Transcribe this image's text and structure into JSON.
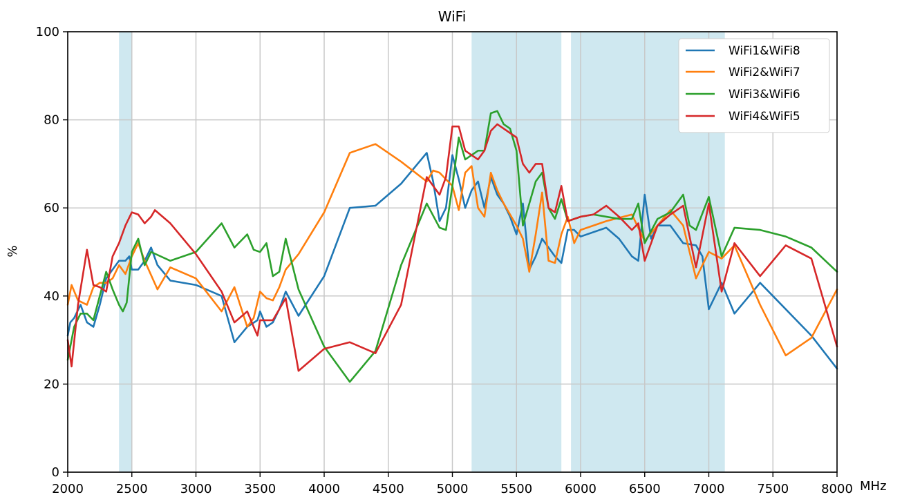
{
  "chart_data": {
    "type": "line",
    "title": "WiFi",
    "xlabel": "MHz",
    "ylabel": "%",
    "xlim": [
      2000,
      8000
    ],
    "ylim": [
      0,
      100
    ],
    "grid": true,
    "legend_position": "top-right",
    "x_ticks": [
      2000,
      2500,
      3000,
      3500,
      4000,
      4500,
      5000,
      5500,
      6000,
      6500,
      7000,
      7500,
      8000
    ],
    "x_tick_labels": [
      "2000",
      "2500",
      "3000",
      "3500",
      "4000",
      "4500",
      "5000",
      "5500",
      "6000",
      "6500",
      "7000",
      "7500",
      "8000"
    ],
    "y_ticks": [
      0,
      20,
      40,
      60,
      80,
      100
    ],
    "y_tick_labels": [
      "0",
      "20",
      "40",
      "60",
      "80",
      "100"
    ],
    "shaded_bands": [
      {
        "x0": 2400,
        "x1": 2500,
        "color": "#add8e6"
      },
      {
        "x0": 5150,
        "x1": 5850,
        "color": "#add8e6"
      },
      {
        "x0": 5925,
        "x1": 7125,
        "color": "#add8e6"
      }
    ],
    "series": [
      {
        "name": "WiFi1&WiFi8",
        "color": "#1f77b4",
        "points": [
          [
            2000,
            31
          ],
          [
            2020,
            34
          ],
          [
            2050,
            35
          ],
          [
            2100,
            38
          ],
          [
            2150,
            34
          ],
          [
            2200,
            33
          ],
          [
            2250,
            38
          ],
          [
            2300,
            44
          ],
          [
            2350,
            46
          ],
          [
            2400,
            48
          ],
          [
            2450,
            48
          ],
          [
            2480,
            49
          ],
          [
            2500,
            46
          ],
          [
            2550,
            46
          ],
          [
            2600,
            48
          ],
          [
            2650,
            51
          ],
          [
            2700,
            47
          ],
          [
            2800,
            43.5
          ],
          [
            3000,
            42.5
          ],
          [
            3200,
            40
          ],
          [
            3300,
            29.5
          ],
          [
            3400,
            33
          ],
          [
            3480,
            34.5
          ],
          [
            3500,
            36.5
          ],
          [
            3550,
            33
          ],
          [
            3600,
            34
          ],
          [
            3650,
            37
          ],
          [
            3700,
            41
          ],
          [
            3800,
            35.5
          ],
          [
            4000,
            44.5
          ],
          [
            4200,
            60
          ],
          [
            4400,
            60.5
          ],
          [
            4600,
            65.5
          ],
          [
            4800,
            72.5
          ],
          [
            4850,
            66
          ],
          [
            4900,
            57
          ],
          [
            4950,
            60
          ],
          [
            5000,
            72
          ],
          [
            5050,
            66.5
          ],
          [
            5100,
            60
          ],
          [
            5150,
            64
          ],
          [
            5200,
            66
          ],
          [
            5250,
            60
          ],
          [
            5300,
            67
          ],
          [
            5350,
            63
          ],
          [
            5400,
            61
          ],
          [
            5450,
            58
          ],
          [
            5500,
            54
          ],
          [
            5550,
            61
          ],
          [
            5600,
            46
          ],
          [
            5650,
            49
          ],
          [
            5700,
            53
          ],
          [
            5750,
            51
          ],
          [
            5800,
            49
          ],
          [
            5850,
            47.5
          ],
          [
            5900,
            55
          ],
          [
            5950,
            55
          ],
          [
            6000,
            53.5
          ],
          [
            6200,
            55.5
          ],
          [
            6300,
            53
          ],
          [
            6400,
            49
          ],
          [
            6450,
            48
          ],
          [
            6500,
            63
          ],
          [
            6550,
            53
          ],
          [
            6600,
            56
          ],
          [
            6700,
            56
          ],
          [
            6800,
            52
          ],
          [
            6900,
            51.5
          ],
          [
            6950,
            49
          ],
          [
            7000,
            37
          ],
          [
            7100,
            43
          ],
          [
            7200,
            36
          ],
          [
            7400,
            43
          ],
          [
            7600,
            37
          ],
          [
            7800,
            31
          ],
          [
            8000,
            23.5
          ]
        ]
      },
      {
        "name": "WiFi2&WiFi7",
        "color": "#ff7f0e",
        "points": [
          [
            2000,
            38
          ],
          [
            2030,
            42.5
          ],
          [
            2080,
            39
          ],
          [
            2150,
            38
          ],
          [
            2200,
            42
          ],
          [
            2250,
            43
          ],
          [
            2300,
            43
          ],
          [
            2350,
            44
          ],
          [
            2400,
            47
          ],
          [
            2450,
            45
          ],
          [
            2500,
            49
          ],
          [
            2550,
            52
          ],
          [
            2600,
            48
          ],
          [
            2700,
            41.5
          ],
          [
            2800,
            46.5
          ],
          [
            3000,
            44
          ],
          [
            3200,
            36.5
          ],
          [
            3300,
            42
          ],
          [
            3400,
            33
          ],
          [
            3450,
            35
          ],
          [
            3500,
            41
          ],
          [
            3550,
            39.5
          ],
          [
            3600,
            39
          ],
          [
            3650,
            42
          ],
          [
            3700,
            46
          ],
          [
            3800,
            49.5
          ],
          [
            4000,
            59
          ],
          [
            4200,
            72.5
          ],
          [
            4400,
            74.5
          ],
          [
            4600,
            70.5
          ],
          [
            4800,
            66
          ],
          [
            4850,
            68.5
          ],
          [
            4900,
            68
          ],
          [
            5000,
            65
          ],
          [
            5050,
            59.5
          ],
          [
            5100,
            68
          ],
          [
            5150,
            69.5
          ],
          [
            5200,
            60
          ],
          [
            5250,
            58
          ],
          [
            5300,
            68
          ],
          [
            5350,
            64
          ],
          [
            5400,
            61
          ],
          [
            5450,
            58.5
          ],
          [
            5500,
            56
          ],
          [
            5550,
            53
          ],
          [
            5600,
            45.5
          ],
          [
            5650,
            54
          ],
          [
            5700,
            63.5
          ],
          [
            5750,
            48
          ],
          [
            5800,
            47.5
          ],
          [
            5850,
            54
          ],
          [
            5900,
            58
          ],
          [
            5950,
            52
          ],
          [
            6000,
            55
          ],
          [
            6200,
            57
          ],
          [
            6400,
            58.5
          ],
          [
            6450,
            55.5
          ],
          [
            6500,
            52.5
          ],
          [
            6700,
            59.5
          ],
          [
            6800,
            56
          ],
          [
            6900,
            44
          ],
          [
            7000,
            50
          ],
          [
            7100,
            48.5
          ],
          [
            7200,
            51.5
          ],
          [
            7400,
            38
          ],
          [
            7600,
            26.5
          ],
          [
            7800,
            30.5
          ],
          [
            8000,
            41.5
          ]
        ]
      },
      {
        "name": "WiFi3&WiFi6",
        "color": "#2ca02c",
        "points": [
          [
            2000,
            25.5
          ],
          [
            2050,
            33
          ],
          [
            2100,
            36
          ],
          [
            2150,
            36
          ],
          [
            2200,
            34.5
          ],
          [
            2300,
            45.5
          ],
          [
            2350,
            41.5
          ],
          [
            2400,
            38
          ],
          [
            2430,
            36.5
          ],
          [
            2460,
            38.5
          ],
          [
            2500,
            50
          ],
          [
            2550,
            53
          ],
          [
            2600,
            47
          ],
          [
            2650,
            50
          ],
          [
            2800,
            48
          ],
          [
            3000,
            50
          ],
          [
            3200,
            56.5
          ],
          [
            3300,
            51
          ],
          [
            3400,
            54
          ],
          [
            3450,
            50.5
          ],
          [
            3500,
            50
          ],
          [
            3550,
            52
          ],
          [
            3600,
            44.5
          ],
          [
            3650,
            45.5
          ],
          [
            3700,
            53
          ],
          [
            3800,
            41.5
          ],
          [
            4000,
            28.5
          ],
          [
            4200,
            20.5
          ],
          [
            4400,
            27.5
          ],
          [
            4600,
            47
          ],
          [
            4800,
            61
          ],
          [
            4900,
            55.5
          ],
          [
            4950,
            55
          ],
          [
            5000,
            65
          ],
          [
            5050,
            76
          ],
          [
            5100,
            71
          ],
          [
            5150,
            72
          ],
          [
            5200,
            73
          ],
          [
            5250,
            73
          ],
          [
            5300,
            81.5
          ],
          [
            5350,
            82
          ],
          [
            5400,
            79
          ],
          [
            5450,
            78
          ],
          [
            5500,
            73
          ],
          [
            5550,
            56
          ],
          [
            5600,
            61
          ],
          [
            5650,
            66
          ],
          [
            5700,
            68
          ],
          [
            5750,
            60
          ],
          [
            5800,
            57.5
          ],
          [
            5850,
            62
          ],
          [
            5900,
            57
          ],
          [
            6000,
            58
          ],
          [
            6100,
            58.5
          ],
          [
            6200,
            58
          ],
          [
            6300,
            57.5
          ],
          [
            6400,
            57.5
          ],
          [
            6450,
            61
          ],
          [
            6500,
            52
          ],
          [
            6600,
            57.5
          ],
          [
            6700,
            59
          ],
          [
            6800,
            63
          ],
          [
            6850,
            56
          ],
          [
            6900,
            55
          ],
          [
            7000,
            62.5
          ],
          [
            7100,
            49
          ],
          [
            7200,
            55.5
          ],
          [
            7400,
            55
          ],
          [
            7600,
            53.5
          ],
          [
            7800,
            51
          ],
          [
            8000,
            45.5
          ]
        ]
      },
      {
        "name": "WiFi4&WiFi5",
        "color": "#d62728",
        "points": [
          [
            2000,
            30
          ],
          [
            2030,
            24
          ],
          [
            2080,
            38
          ],
          [
            2150,
            50.5
          ],
          [
            2200,
            42.5
          ],
          [
            2250,
            42
          ],
          [
            2300,
            41
          ],
          [
            2350,
            49
          ],
          [
            2400,
            52
          ],
          [
            2450,
            56
          ],
          [
            2500,
            59
          ],
          [
            2550,
            58.5
          ],
          [
            2600,
            56.5
          ],
          [
            2650,
            58
          ],
          [
            2680,
            59.5
          ],
          [
            2800,
            56.5
          ],
          [
            3000,
            49.5
          ],
          [
            3200,
            41
          ],
          [
            3300,
            34
          ],
          [
            3400,
            36.5
          ],
          [
            3450,
            33
          ],
          [
            3480,
            31
          ],
          [
            3500,
            34.5
          ],
          [
            3600,
            34.5
          ],
          [
            3700,
            39.5
          ],
          [
            3800,
            23
          ],
          [
            4000,
            28
          ],
          [
            4200,
            29.5
          ],
          [
            4400,
            27
          ],
          [
            4600,
            38
          ],
          [
            4800,
            67
          ],
          [
            4900,
            63
          ],
          [
            4950,
            67
          ],
          [
            5000,
            78.5
          ],
          [
            5050,
            78.5
          ],
          [
            5100,
            73
          ],
          [
            5150,
            72
          ],
          [
            5200,
            71
          ],
          [
            5250,
            73
          ],
          [
            5300,
            77.5
          ],
          [
            5350,
            79
          ],
          [
            5400,
            78
          ],
          [
            5500,
            76
          ],
          [
            5550,
            70
          ],
          [
            5600,
            68
          ],
          [
            5650,
            70
          ],
          [
            5700,
            70
          ],
          [
            5750,
            60
          ],
          [
            5800,
            59
          ],
          [
            5850,
            65
          ],
          [
            5900,
            57
          ],
          [
            6000,
            58
          ],
          [
            6100,
            58.5
          ],
          [
            6200,
            60.5
          ],
          [
            6300,
            58
          ],
          [
            6400,
            55
          ],
          [
            6450,
            56.5
          ],
          [
            6500,
            48
          ],
          [
            6600,
            56
          ],
          [
            6700,
            58.5
          ],
          [
            6800,
            60.5
          ],
          [
            6900,
            46.5
          ],
          [
            7000,
            61
          ],
          [
            7100,
            41
          ],
          [
            7200,
            52
          ],
          [
            7400,
            44.5
          ],
          [
            7600,
            51.5
          ],
          [
            7800,
            48.5
          ],
          [
            8000,
            28.5
          ]
        ]
      }
    ]
  }
}
